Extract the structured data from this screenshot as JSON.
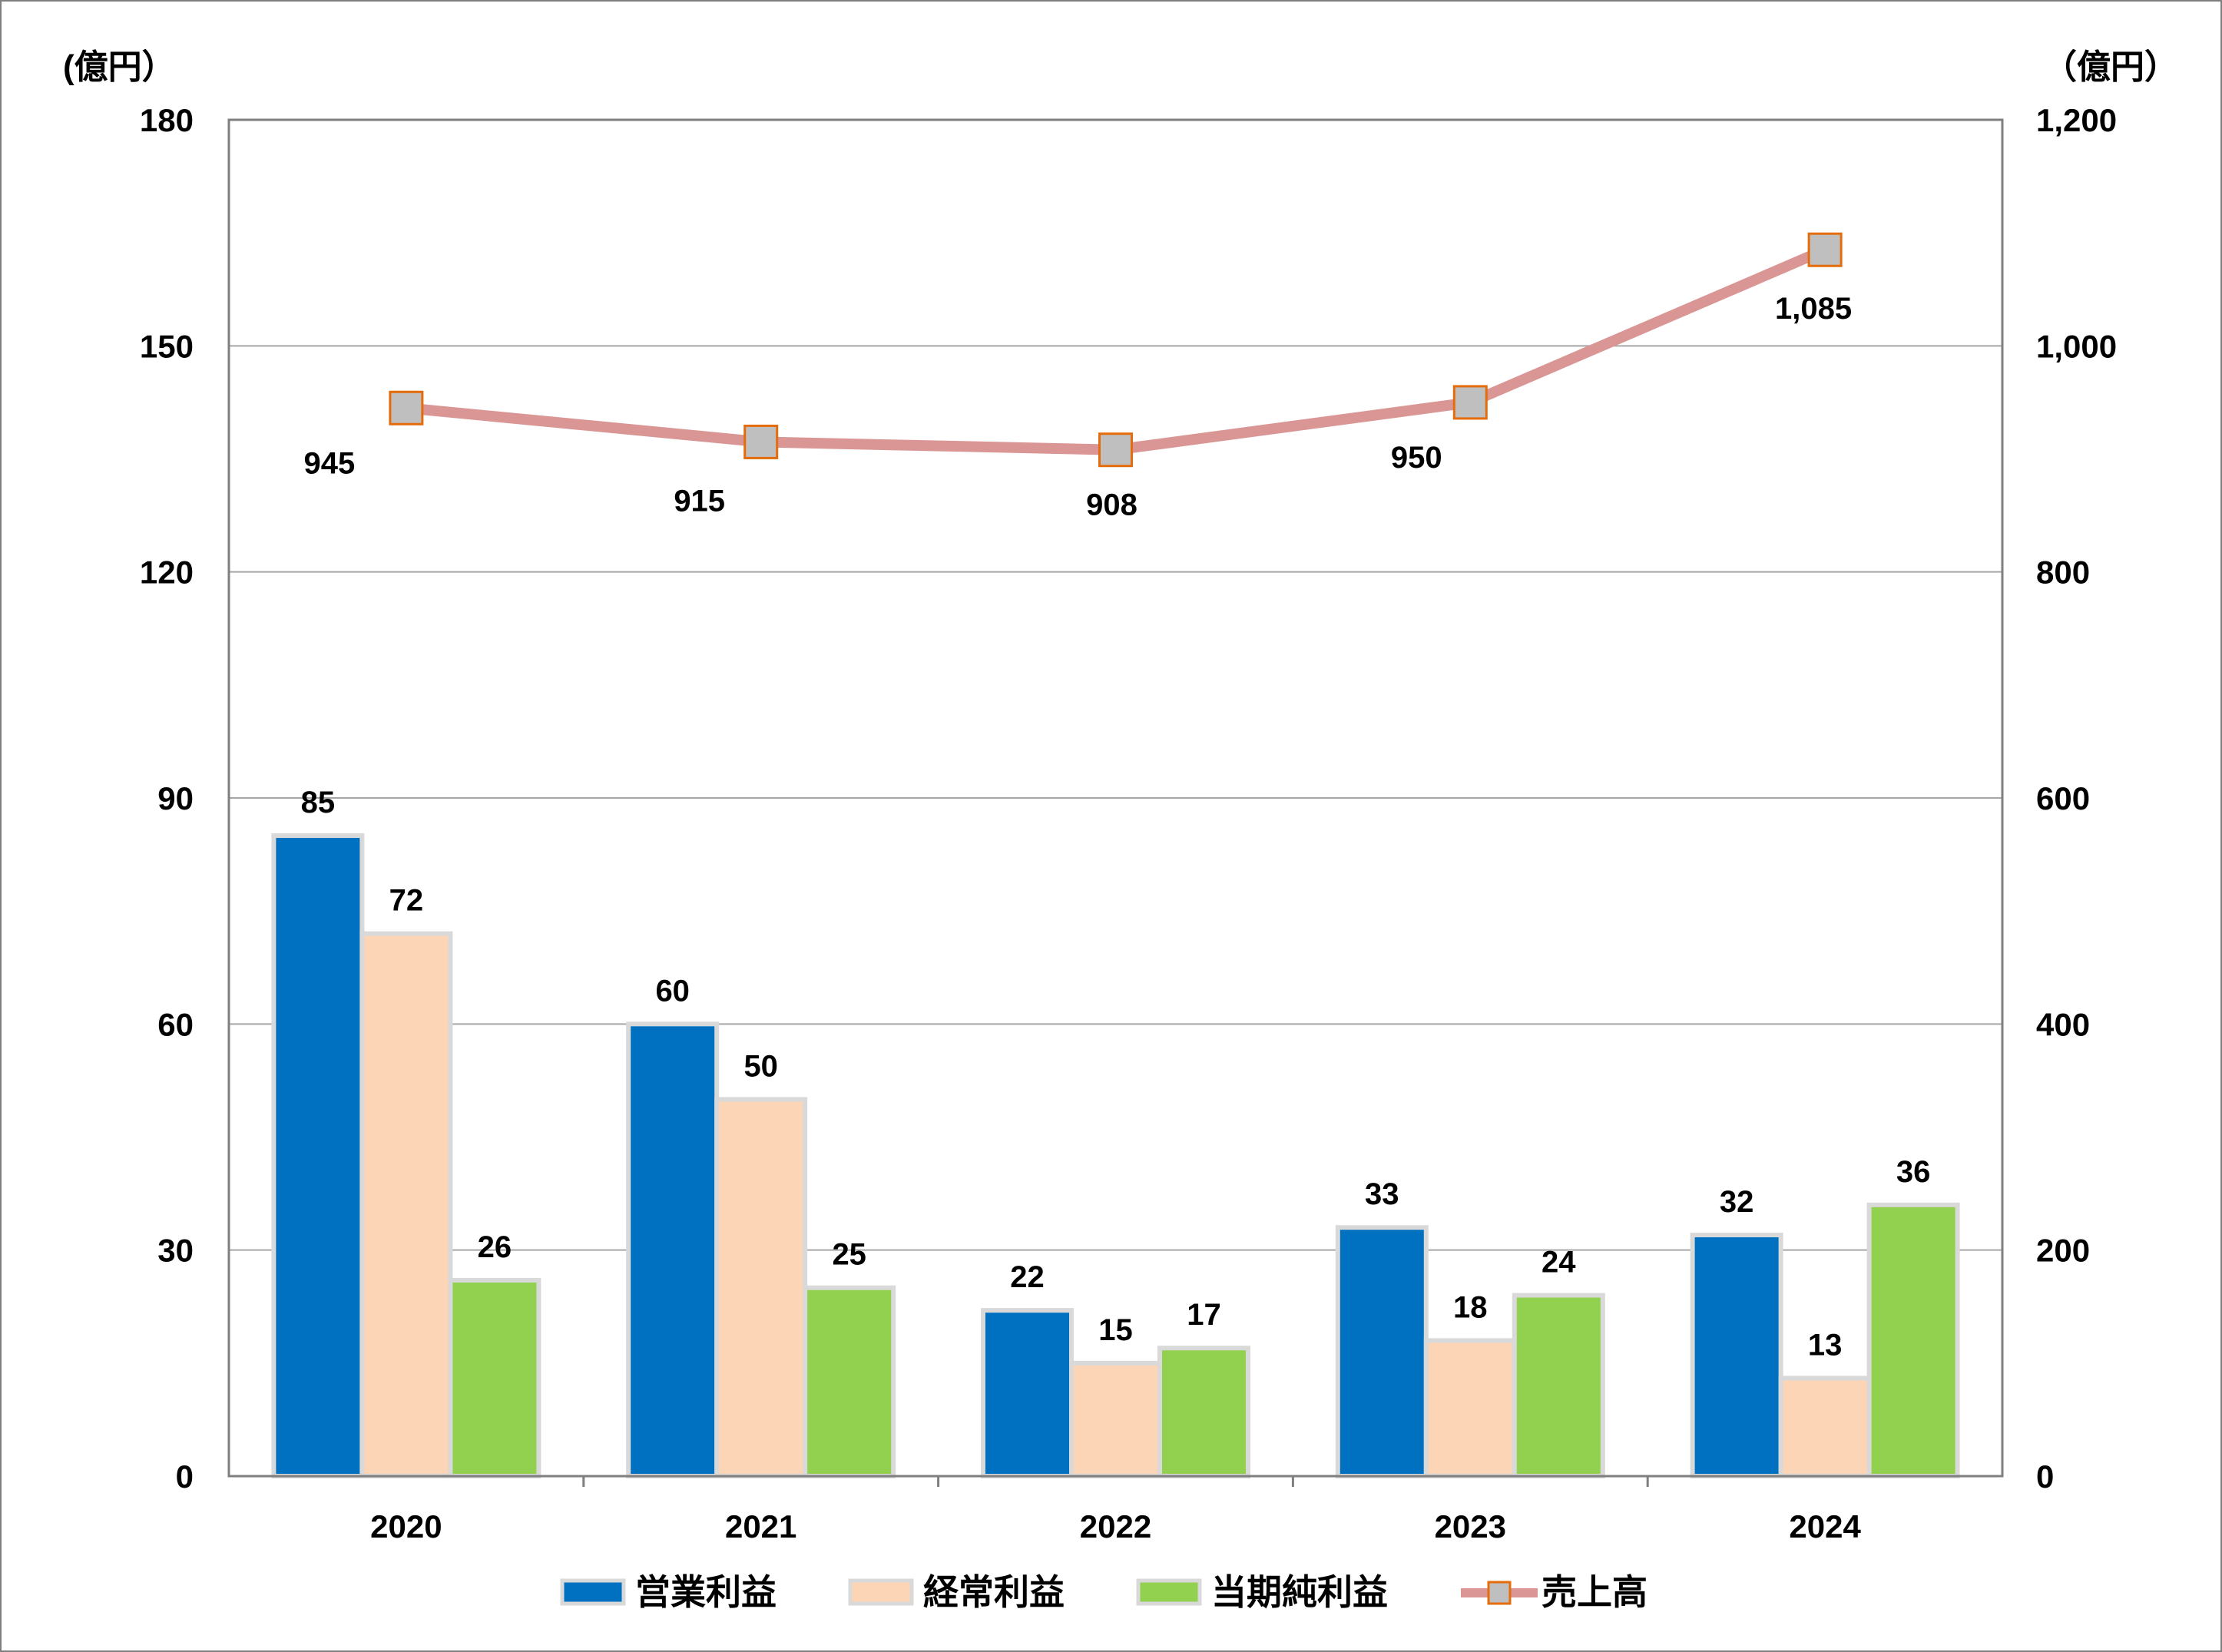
{
  "chart_data": {
    "type": "bar",
    "categories": [
      "2020",
      "2021",
      "2022",
      "2023",
      "2024"
    ],
    "series": [
      {
        "name": "営業利益",
        "axis": "left",
        "kind": "bar",
        "color": "#0070c0",
        "values": [
          85,
          60,
          22,
          33,
          32
        ]
      },
      {
        "name": "経常利益",
        "axis": "left",
        "kind": "bar",
        "color": "#fbd5b5",
        "values": [
          72,
          50,
          15,
          18,
          13
        ]
      },
      {
        "name": "当期純利益",
        "axis": "left",
        "kind": "bar",
        "color": "#92d050",
        "values": [
          26,
          25,
          17,
          24,
          36
        ]
      },
      {
        "name": "売上高",
        "axis": "right",
        "kind": "line",
        "color": "#d99694",
        "marker_color": "#bfbfbf",
        "marker_border": "#e46c0a",
        "values": [
          945,
          915,
          908,
          950,
          1085
        ]
      }
    ],
    "data_labels_bars": [
      "85",
      "72",
      "26",
      "60",
      "50",
      "25",
      "22",
      "15",
      "17",
      "33",
      "18",
      "24",
      "32",
      "13",
      "36"
    ],
    "data_labels_line": [
      "945",
      "915",
      "908",
      "950",
      "1,085"
    ],
    "y_left": {
      "unit": "(億円）",
      "ylim": [
        0,
        180
      ],
      "ticks": [
        "0",
        "30",
        "60",
        "90",
        "120",
        "150",
        "180"
      ]
    },
    "y_right": {
      "unit": "（億円）",
      "ylim": [
        0,
        1200
      ],
      "ticks": [
        "0",
        "200",
        "400",
        "600",
        "800",
        "1,000",
        "1,200"
      ]
    },
    "grid": true,
    "legend_position": "bottom",
    "border_color": "#7f7f7f",
    "grid_color": "#a6a6a6"
  }
}
